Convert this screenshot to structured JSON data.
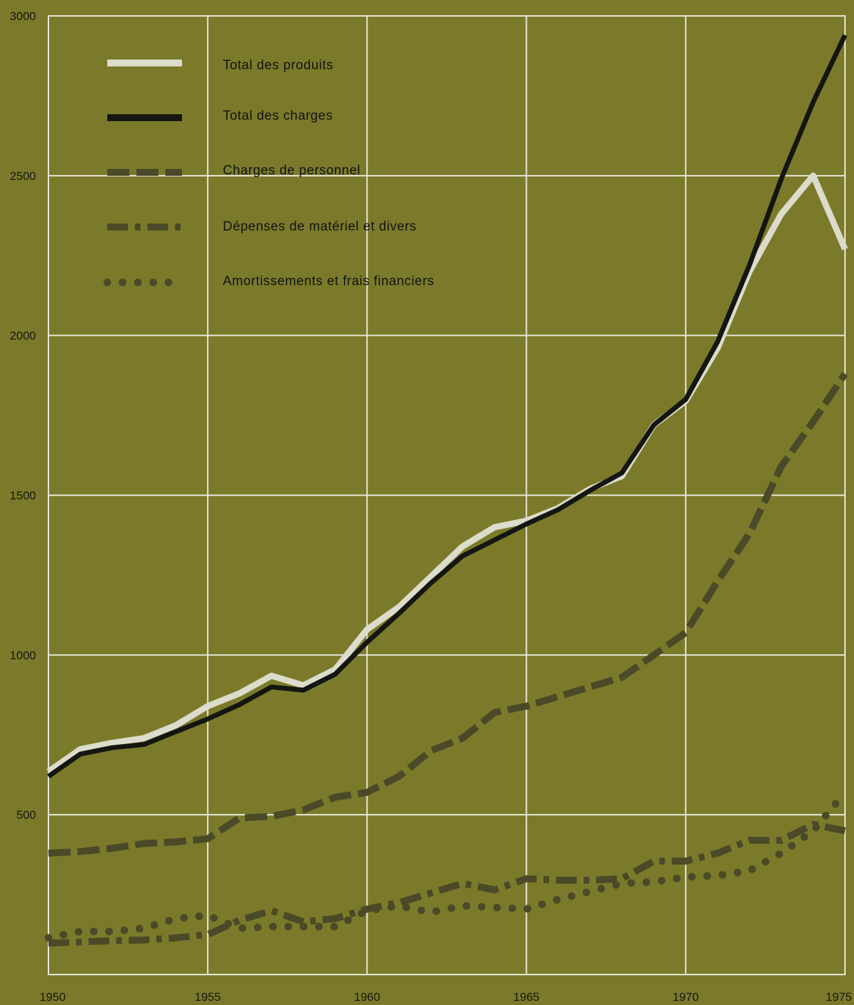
{
  "chart_data": {
    "type": "line",
    "title": "",
    "xlabel": "",
    "ylabel": "",
    "xlim": [
      1950,
      1975
    ],
    "ylim": [
      0,
      3000
    ],
    "grid": true,
    "legend_position": "top-left",
    "y_ticks": [
      "3000",
      "2500",
      "2000",
      "1500",
      "1000",
      "500"
    ],
    "x_ticks": [
      "1950",
      "1955",
      "1960",
      "1965",
      "1970",
      "1975"
    ],
    "colors": {
      "background": "#7b7a2a",
      "grid": "#e8eadc",
      "produits": "#dcdccc",
      "charges": "#141612",
      "secondary": "#4a4a28"
    },
    "x": [
      1950,
      1951,
      1952,
      1953,
      1954,
      1955,
      1956,
      1957,
      1958,
      1959,
      1960,
      1961,
      1962,
      1963,
      1964,
      1965,
      1966,
      1967,
      1968,
      1969,
      1970,
      1971,
      1972,
      1973,
      1974,
      1975
    ],
    "series": [
      {
        "name": "Total des produits",
        "style": "solid-light",
        "values": [
          635,
          705,
          725,
          740,
          780,
          840,
          880,
          935,
          905,
          955,
          1080,
          1150,
          1245,
          1340,
          1400,
          1420,
          1460,
          1520,
          1560,
          1720,
          1795,
          1960,
          2200,
          2380,
          2500,
          2270
        ]
      },
      {
        "name": "Total des charges",
        "style": "solid-dark",
        "values": [
          620,
          690,
          710,
          720,
          760,
          800,
          845,
          900,
          890,
          940,
          1040,
          1130,
          1225,
          1310,
          1360,
          1410,
          1455,
          1515,
          1570,
          1720,
          1800,
          1980,
          2220,
          2490,
          2730,
          2940
        ]
      },
      {
        "name": "Charges de personnel",
        "style": "dashed",
        "values": [
          380,
          385,
          395,
          410,
          415,
          425,
          490,
          495,
          515,
          555,
          570,
          620,
          700,
          740,
          820,
          840,
          870,
          900,
          930,
          1000,
          1070,
          1230,
          1380,
          1590,
          1730,
          1880
        ]
      },
      {
        "name": "Dépenses de matériel et divers",
        "style": "dash-dot",
        "values": [
          98,
          102,
          106,
          108,
          115,
          125,
          170,
          200,
          165,
          175,
          205,
          225,
          255,
          285,
          265,
          300,
          295,
          295,
          300,
          355,
          355,
          380,
          420,
          420,
          470,
          450
        ]
      },
      {
        "name": "Amortissements et frais financiers",
        "style": "dotted",
        "values": [
          115,
          135,
          135,
          145,
          175,
          185,
          145,
          150,
          150,
          150,
          200,
          215,
          195,
          215,
          210,
          205,
          235,
          260,
          285,
          290,
          305,
          310,
          325,
          380,
          450,
          570
        ]
      }
    ]
  }
}
